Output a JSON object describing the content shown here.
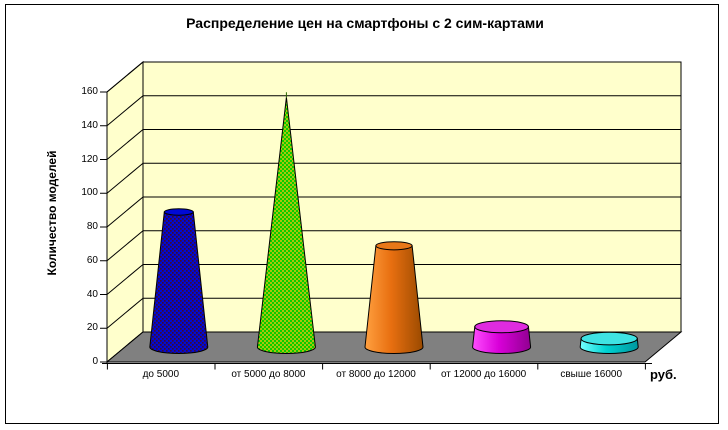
{
  "window": {
    "background": "#FFFFFF",
    "border_color": "#000000"
  },
  "chart_data": {
    "type": "bar",
    "shape": "3d-cone",
    "title": "Распределение цен на смартфоны с 2 сим-картами",
    "categories": [
      "до 5000",
      "от 5000 до 8000",
      "от 8000 до 12000",
      "от 12000 до 16000",
      "свыше 16000"
    ],
    "values": [
      80,
      148,
      60,
      12,
      5
    ],
    "xlabel": "руб.",
    "ylabel": "Количество моделей",
    "ylim": [
      0,
      160
    ],
    "y_tick_step": 20,
    "y_ticks": [
      "0",
      "20",
      "40",
      "60",
      "80",
      "100",
      "120",
      "140",
      "160"
    ],
    "grid": true,
    "legend": false,
    "wall_color": "#FFFFCC",
    "floor_color": "#808080",
    "point_colors": [
      "#0009D6",
      "#33CC00",
      "#E8741C",
      "#D900D9",
      "#00D2D2"
    ],
    "point_top_colors": [
      "#0009D6",
      "#33CC00",
      "#E87818",
      "#DF2BDF",
      "#3FE3E3"
    ]
  }
}
